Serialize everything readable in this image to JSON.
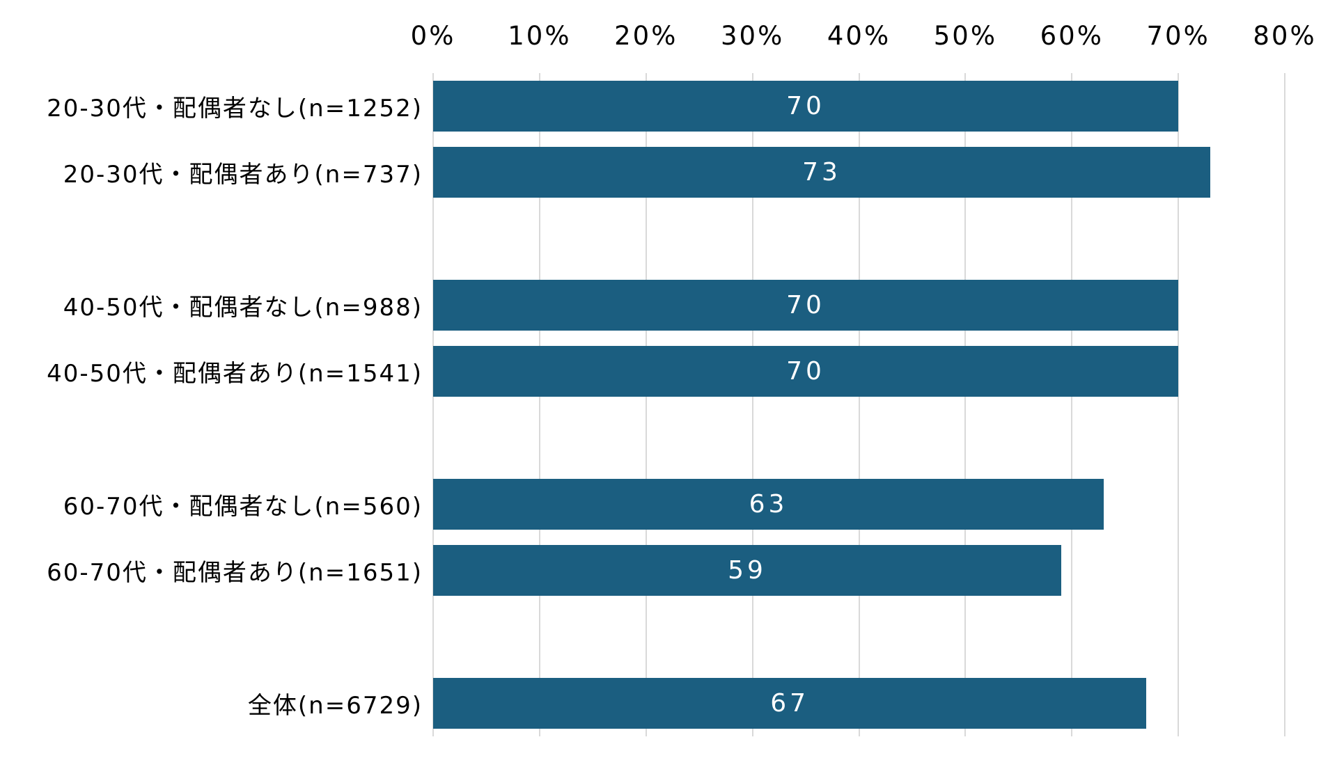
{
  "chart_data": {
    "type": "bar",
    "orientation": "horizontal",
    "title": "",
    "xlabel": "",
    "ylabel": "",
    "axis_position": "top",
    "xlim": [
      0,
      80
    ],
    "tick_step": 10,
    "ticks": [
      "0%",
      "10%",
      "20%",
      "30%",
      "40%",
      "50%",
      "60%",
      "70%",
      "80%"
    ],
    "grid": true,
    "legend": false,
    "rows": [
      {
        "label": "20-30代・配偶者なし(n=1252)",
        "value": 70
      },
      {
        "label": "20-30代・配偶者あり(n=737)",
        "value": 73
      },
      {
        "label": "",
        "value": null
      },
      {
        "label": "40-50代・配偶者なし(n=988)",
        "value": 70
      },
      {
        "label": "40-50代・配偶者あり(n=1541)",
        "value": 70
      },
      {
        "label": "",
        "value": null
      },
      {
        "label": "60-70代・配偶者なし(n=560)",
        "value": 63
      },
      {
        "label": "60-70代・配偶者あり(n=1651)",
        "value": 59
      },
      {
        "label": "",
        "value": null
      },
      {
        "label": "全体(n=6729)",
        "value": 67
      }
    ],
    "colors": {
      "bar": "#1B5E80",
      "gridline": "#D9D9D9",
      "axis_text": "#000000",
      "value_label": "#FFFFFF",
      "background": "#FFFFFF"
    }
  }
}
